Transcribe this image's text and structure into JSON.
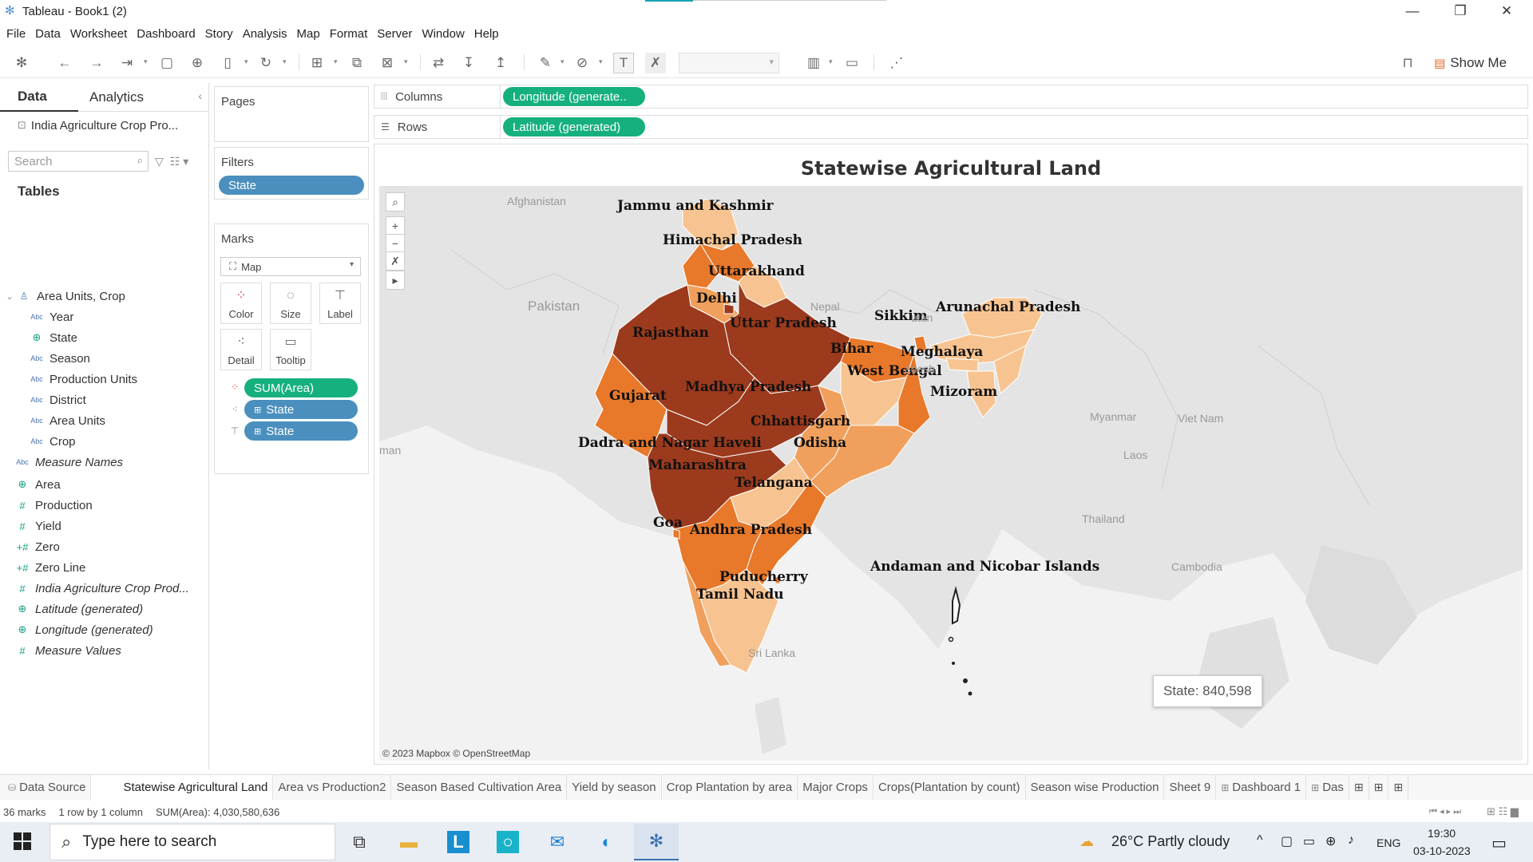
{
  "window": {
    "title": "Tableau - Book1 (2)"
  },
  "menu": [
    "File",
    "Data",
    "Worksheet",
    "Dashboard",
    "Story",
    "Analysis",
    "Map",
    "Format",
    "Server",
    "Window",
    "Help"
  ],
  "toolbar": {
    "show_me_label": "Show Me"
  },
  "datapane": {
    "tabs": [
      "Data",
      "Analytics"
    ],
    "datasource": "India Agriculture Crop Pro...",
    "search_placeholder": "Search",
    "tables_title": "Tables",
    "group_label": "Area Units, Crop",
    "fields": [
      {
        "label": "Year",
        "type": "abc",
        "indent": true,
        "italic": false
      },
      {
        "label": "State",
        "type": "globe",
        "indent": true,
        "italic": false
      },
      {
        "label": "Season",
        "type": "abc",
        "indent": true,
        "italic": false
      },
      {
        "label": "Production Units",
        "type": "abc",
        "indent": true,
        "italic": false
      },
      {
        "label": "District",
        "type": "abc",
        "indent": true,
        "italic": false
      },
      {
        "label": "Area Units",
        "type": "abc",
        "indent": true,
        "italic": false
      },
      {
        "label": "Crop",
        "type": "abc",
        "indent": true,
        "italic": false
      },
      {
        "label": "Measure Names",
        "type": "abc",
        "indent": false,
        "italic": true
      },
      {
        "label": "Area",
        "type": "globe",
        "indent": false,
        "italic": false
      },
      {
        "label": "Production",
        "type": "hash",
        "indent": false,
        "italic": false
      },
      {
        "label": "Yield",
        "type": "hash",
        "indent": false,
        "italic": false
      },
      {
        "label": "Zero",
        "type": "num",
        "indent": false,
        "italic": false
      },
      {
        "label": "Zero Line",
        "type": "num",
        "indent": false,
        "italic": false
      },
      {
        "label": "India Agriculture Crop Prod...",
        "type": "hash",
        "indent": false,
        "italic": true
      },
      {
        "label": "Latitude (generated)",
        "type": "globe",
        "indent": false,
        "italic": true
      },
      {
        "label": "Longitude (generated)",
        "type": "globe",
        "indent": false,
        "italic": true
      },
      {
        "label": "Measure Values",
        "type": "hash",
        "indent": false,
        "italic": true
      }
    ]
  },
  "cards": {
    "pages": "Pages",
    "filters": "Filters",
    "filter_pill": "State",
    "marks": "Marks",
    "mark_type": "Map",
    "buttons": [
      "Color",
      "Size",
      "Label",
      "Detail",
      "Tooltip"
    ],
    "encodings": [
      {
        "label": "SUM(Area)",
        "color": "green"
      },
      {
        "label": "State",
        "color": "blue"
      },
      {
        "label": "State",
        "color": "blue"
      }
    ]
  },
  "shelves": {
    "columns_label": "Columns",
    "columns_pill": "Longitude (generate..",
    "rows_label": "Rows",
    "rows_pill": "Latitude (generated)"
  },
  "view": {
    "title": "Statewise Agricultural Land",
    "copyright": "© 2023 Mapbox © OpenStreetMap",
    "tooltip": "State: 840,598",
    "country_labels": [
      "Afghanistan",
      "Pakistan",
      "Nepal",
      "Myanmar",
      "Viet Nam",
      "Laos",
      "Thailand",
      "Cambodia",
      "Sri Lanka",
      "man",
      "utan",
      "adesh"
    ],
    "state_labels": [
      "Jammu and Kashmir",
      "Himachal Pradesh",
      "Uttarakhand",
      "Delhi",
      "Sikkim",
      "Arunachal Pradesh",
      "Rajasthan",
      "Uttar Pradesh",
      "Bihar",
      "Meghalaya",
      "West Bengal",
      "Gujarat",
      "Madhya Pradesh",
      "Mizoram",
      "Chhattisgarh",
      "Odisha",
      "Dadra and Nagar Haveli",
      "Maharashtra",
      "Telangana",
      "Goa",
      "Andhra Pradesh",
      "Andaman and Nicobar Islands",
      "Puducherry",
      "Tamil Nadu"
    ],
    "colors": {
      "darkest": "#9c3a1d",
      "dark": "#e8782a",
      "mid": "#f0a05c",
      "light": "#f7c491",
      "land": "#e2e2e2",
      "water": "#f2f2f2"
    }
  },
  "sheet_tabs": [
    "Data Source",
    "Statewise Agricultural Land",
    "Area vs Production2",
    "Season Based Cultivation Area",
    "Yield by season",
    "Crop Plantation by area",
    "Major Crops",
    "Crops(Plantation by count)",
    "Season wise Production",
    "Sheet 9",
    "Dashboard 1",
    "Das"
  ],
  "status": {
    "marks": "36 marks",
    "dims": "1 row by 1 column",
    "sum": "SUM(Area): 4,030,580,636"
  },
  "taskbar": {
    "search_placeholder": "Type here to search",
    "weather": "26°C  Partly cloudy",
    "lang": "ENG",
    "time": "19:30",
    "date": "03-10-2023"
  }
}
